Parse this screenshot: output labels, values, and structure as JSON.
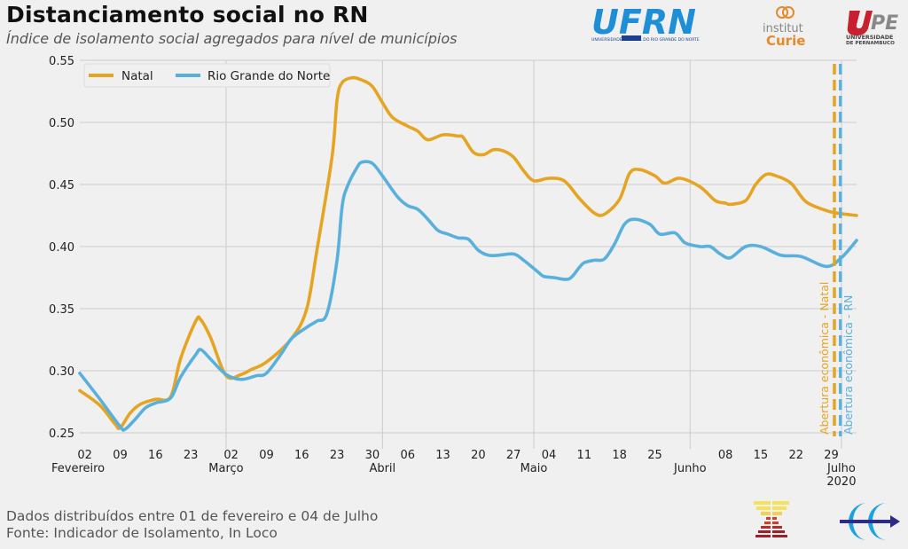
{
  "header": {
    "title": "Distanciamento social no RN",
    "subtitle": "Índice de isolamento social agregados para nível de municípios"
  },
  "logos": {
    "ufrn": "UFRN",
    "ufrn_caption": "UNIVERSIDADE FEDERAL DO RIO GRANDE DO NORTE",
    "curie_line1": "institut",
    "curie_line2": "Curie",
    "upe_line1": "UNIVERSIDADE",
    "upe_line2": "DE PERNAMBUCO"
  },
  "footer": {
    "line1": "Dados distribuídos entre 01 de fevereiro e 04 de Julho",
    "line2": "Fonte: Indicador de Isolamento, In Loco"
  },
  "chart_data": {
    "type": "line",
    "title": "Distanciamento social no RN",
    "subtitle": "Índice de isolamento social agregados para nível de municípios",
    "xlabel": "",
    "ylabel": "",
    "x_unit": "days since 01 Feb 2020",
    "xlim": [
      0,
      154
    ],
    "ylim": [
      0.25,
      0.55
    ],
    "yticks": [
      0.25,
      0.3,
      0.35,
      0.4,
      0.45,
      0.5,
      0.55
    ],
    "ytick_labels": [
      "0.25",
      "0.30",
      "0.35",
      "0.40",
      "0.45",
      "0.50",
      "0.55"
    ],
    "xticks": [
      {
        "day": 1,
        "label": "02"
      },
      {
        "day": 8,
        "label": "09"
      },
      {
        "day": 15,
        "label": "16"
      },
      {
        "day": 22,
        "label": "23"
      },
      {
        "day": 30,
        "label": "02"
      },
      {
        "day": 37,
        "label": "09"
      },
      {
        "day": 44,
        "label": "16"
      },
      {
        "day": 51,
        "label": "23"
      },
      {
        "day": 58,
        "label": "30"
      },
      {
        "day": 65,
        "label": "06"
      },
      {
        "day": 72,
        "label": "13"
      },
      {
        "day": 79,
        "label": "20"
      },
      {
        "day": 86,
        "label": "27"
      },
      {
        "day": 93,
        "label": "04"
      },
      {
        "day": 100,
        "label": "11"
      },
      {
        "day": 107,
        "label": "18"
      },
      {
        "day": 114,
        "label": "25"
      },
      {
        "day": 128,
        "label": "08"
      },
      {
        "day": 135,
        "label": "15"
      },
      {
        "day": 142,
        "label": "22"
      },
      {
        "day": 149,
        "label": "29"
      }
    ],
    "month_labels": [
      {
        "day": 0,
        "label": "Fevereiro"
      },
      {
        "day": 29,
        "label": "Março"
      },
      {
        "day": 60,
        "label": "Abril"
      },
      {
        "day": 90,
        "label": "Maio"
      },
      {
        "day": 121,
        "label": "Junho"
      },
      {
        "day": 151,
        "label": "Julho"
      }
    ],
    "year_label": {
      "day": 151,
      "label": "2020"
    },
    "month_gridlines": [
      29,
      60,
      90,
      121,
      151
    ],
    "grid": true,
    "legend_position": "top-left",
    "series": [
      {
        "name": "Natal",
        "color": "#e5a522",
        "x": [
          0,
          4,
          7,
          8,
          10,
          12,
          15,
          18,
          20,
          23,
          24,
          26,
          29,
          32,
          34,
          37,
          42,
          45,
          47,
          50,
          51,
          52,
          54,
          56,
          58,
          60,
          62,
          65,
          67,
          69,
          72,
          75,
          76,
          78,
          80,
          82,
          84,
          86,
          88,
          90,
          93,
          96,
          99,
          102,
          104,
          107,
          109,
          111,
          114,
          116,
          119,
          123,
          126,
          128,
          129,
          132,
          134,
          136,
          138,
          141,
          144,
          148,
          150,
          154
        ],
        "values": [
          0.284,
          0.272,
          0.257,
          0.254,
          0.266,
          0.273,
          0.277,
          0.279,
          0.31,
          0.34,
          0.341,
          0.326,
          0.296,
          0.297,
          0.301,
          0.307,
          0.326,
          0.35,
          0.397,
          0.472,
          0.518,
          0.532,
          0.536,
          0.534,
          0.529,
          0.516,
          0.504,
          0.497,
          0.493,
          0.486,
          0.49,
          0.489,
          0.488,
          0.476,
          0.474,
          0.478,
          0.477,
          0.472,
          0.461,
          0.453,
          0.455,
          0.453,
          0.439,
          0.427,
          0.426,
          0.438,
          0.459,
          0.462,
          0.457,
          0.451,
          0.455,
          0.448,
          0.437,
          0.435,
          0.434,
          0.437,
          0.45,
          0.458,
          0.457,
          0.451,
          0.436,
          0.429,
          0.427,
          0.425
        ]
      },
      {
        "name": "Rio Grande do Norte",
        "color": "#5ab0dc",
        "x": [
          0,
          4,
          8,
          9,
          11,
          13,
          15,
          18,
          20,
          23,
          24,
          26,
          29,
          32,
          35,
          37,
          40,
          42,
          45,
          47,
          49,
          51,
          52,
          53,
          55,
          56,
          58,
          60,
          63,
          65,
          67,
          69,
          71,
          73,
          75,
          77,
          79,
          81,
          83,
          86,
          88,
          91,
          92,
          94,
          97,
          99,
          100,
          102,
          104,
          106,
          108,
          110,
          113,
          115,
          118,
          120,
          123,
          125,
          127,
          129,
          132,
          135,
          139,
          143,
          148,
          151,
          154
        ],
        "values": [
          0.298,
          0.277,
          0.255,
          0.253,
          0.261,
          0.27,
          0.274,
          0.278,
          0.295,
          0.313,
          0.317,
          0.309,
          0.297,
          0.293,
          0.296,
          0.298,
          0.314,
          0.326,
          0.335,
          0.34,
          0.346,
          0.389,
          0.432,
          0.448,
          0.464,
          0.468,
          0.467,
          0.457,
          0.44,
          0.433,
          0.43,
          0.422,
          0.413,
          0.41,
          0.407,
          0.406,
          0.397,
          0.393,
          0.393,
          0.394,
          0.389,
          0.379,
          0.376,
          0.375,
          0.374,
          0.383,
          0.387,
          0.389,
          0.39,
          0.402,
          0.418,
          0.422,
          0.418,
          0.41,
          0.411,
          0.403,
          0.4,
          0.4,
          0.394,
          0.391,
          0.4,
          0.4,
          0.393,
          0.392,
          0.384,
          0.391,
          0.405
        ]
      }
    ],
    "annotations": [
      {
        "type": "vline",
        "day": 149.6,
        "label": "Abertura econômica - Natal",
        "color": "#e5a522",
        "style": "dashed"
      },
      {
        "type": "vline",
        "day": 150.8,
        "label": "Abertura econômica - RN",
        "color": "#5ab0dc",
        "style": "dashed"
      }
    ]
  }
}
